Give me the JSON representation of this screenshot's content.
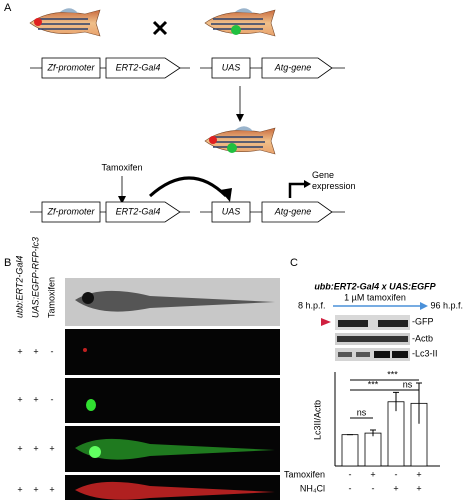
{
  "panel_a": {
    "label": "A",
    "zf_promoter": "Zf-promoter",
    "driver": "ERT2-Gal4",
    "uas": "UAS",
    "atg_gene": "Atg-gene",
    "tamoxifen": "Tamoxifen",
    "gene_expression": "Gene expression"
  },
  "panel_b": {
    "label": "B",
    "row_headers": [
      "ubb:ERT2-Gal4",
      "UAS:EGFP-RFP-lc3",
      "Tamoxifen"
    ],
    "rows": [
      [
        "+",
        "+",
        "-"
      ],
      [
        "+",
        "+",
        "-"
      ],
      [
        "+",
        "+",
        "+"
      ],
      [
        "+",
        "+",
        "+"
      ]
    ]
  },
  "panel_c": {
    "label": "C",
    "title": "ubb:ERT2-Gal4 x UAS:EGFP",
    "start": "8 h.p.f.",
    "end": "96 h.p.f.",
    "treatment": "1 µM tamoxifen",
    "blot_labels": [
      "-GFP",
      "-Actb",
      "-Lc3-II"
    ],
    "significance": [
      "ns",
      "***",
      "ns",
      "***"
    ],
    "conditions": [
      {
        "name": "Tamoxifen",
        "signs": [
          "-",
          "+",
          "-",
          "+"
        ]
      },
      {
        "name": "NH₄Cl",
        "signs": [
          "-",
          "-",
          "+",
          "+"
        ]
      }
    ]
  },
  "chart_data": {
    "type": "bar",
    "y_label": "Lc3II/Actb",
    "values": [
      1.0,
      1.05,
      2.05,
      2.0
    ],
    "errors": [
      0,
      0.1,
      0.3,
      0.65
    ],
    "ylim": [
      0,
      3
    ],
    "color": "#ffffff"
  }
}
